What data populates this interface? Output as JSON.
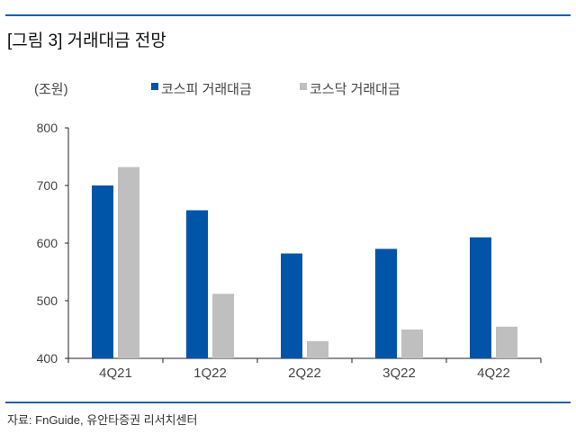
{
  "chart_data": {
    "type": "bar",
    "title": "[그림 3] 거래대금 전망",
    "ylabel": "(조원)",
    "categories": [
      "4Q21",
      "1Q22",
      "2Q22",
      "3Q22",
      "4Q22"
    ],
    "series": [
      {
        "name": "코스피 거래대금",
        "color": "#0055a8",
        "values": [
          700,
          657,
          582,
          590,
          610
        ]
      },
      {
        "name": "코스닥 거래대금",
        "color": "#bfbfbf",
        "values": [
          732,
          512,
          430,
          450,
          455
        ]
      }
    ],
    "ylim": [
      400,
      800
    ],
    "yticks": [
      400,
      500,
      600,
      700,
      800
    ],
    "grid": false,
    "legend_position": "top"
  },
  "source": "자료: FnGuide, 유안타증권 리서치센터"
}
